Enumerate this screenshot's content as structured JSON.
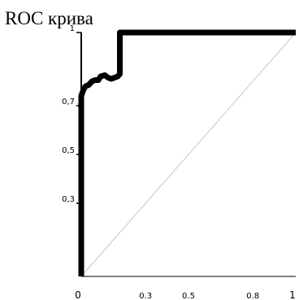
{
  "colors": {
    "curve": "#000000",
    "diagonal": "#c8c8c8",
    "background": "#ffffff"
  },
  "chart_data": {
    "type": "line",
    "title": "ROC крива",
    "xlabel": "",
    "ylabel": "",
    "xlim": [
      0,
      1
    ],
    "ylim": [
      0,
      1
    ],
    "grid": false,
    "x_ticks": [
      {
        "value": 0,
        "label": "0"
      },
      {
        "value": 0.3,
        "label": "0.3"
      },
      {
        "value": 0.5,
        "label": "0.5"
      },
      {
        "value": 0.8,
        "label": "0.8"
      },
      {
        "value": 1,
        "label": "1"
      }
    ],
    "y_ticks": [
      {
        "value": 1,
        "label": "1"
      },
      {
        "value": 0.7,
        "label": "0,7"
      },
      {
        "value": 0.5,
        "label": "0,5"
      },
      {
        "value": 0.3,
        "label": "0,3"
      }
    ],
    "series": [
      {
        "points": [
          [
            0,
            0
          ],
          [
            0,
            0.74
          ],
          [
            0.01,
            0.765
          ],
          [
            0.02,
            0.78
          ],
          [
            0.035,
            0.785
          ],
          [
            0.05,
            0.8
          ],
          [
            0.065,
            0.805
          ],
          [
            0.08,
            0.805
          ],
          [
            0.09,
            0.82
          ],
          [
            0.11,
            0.825
          ],
          [
            0.125,
            0.815
          ],
          [
            0.14,
            0.81
          ],
          [
            0.155,
            0.815
          ],
          [
            0.17,
            0.82
          ],
          [
            0.18,
            0.83
          ],
          [
            0.18,
            1.0
          ],
          [
            1.0,
            1.0
          ]
        ]
      }
    ],
    "reference_line": [
      [
        0,
        0
      ],
      [
        1,
        1
      ]
    ]
  }
}
